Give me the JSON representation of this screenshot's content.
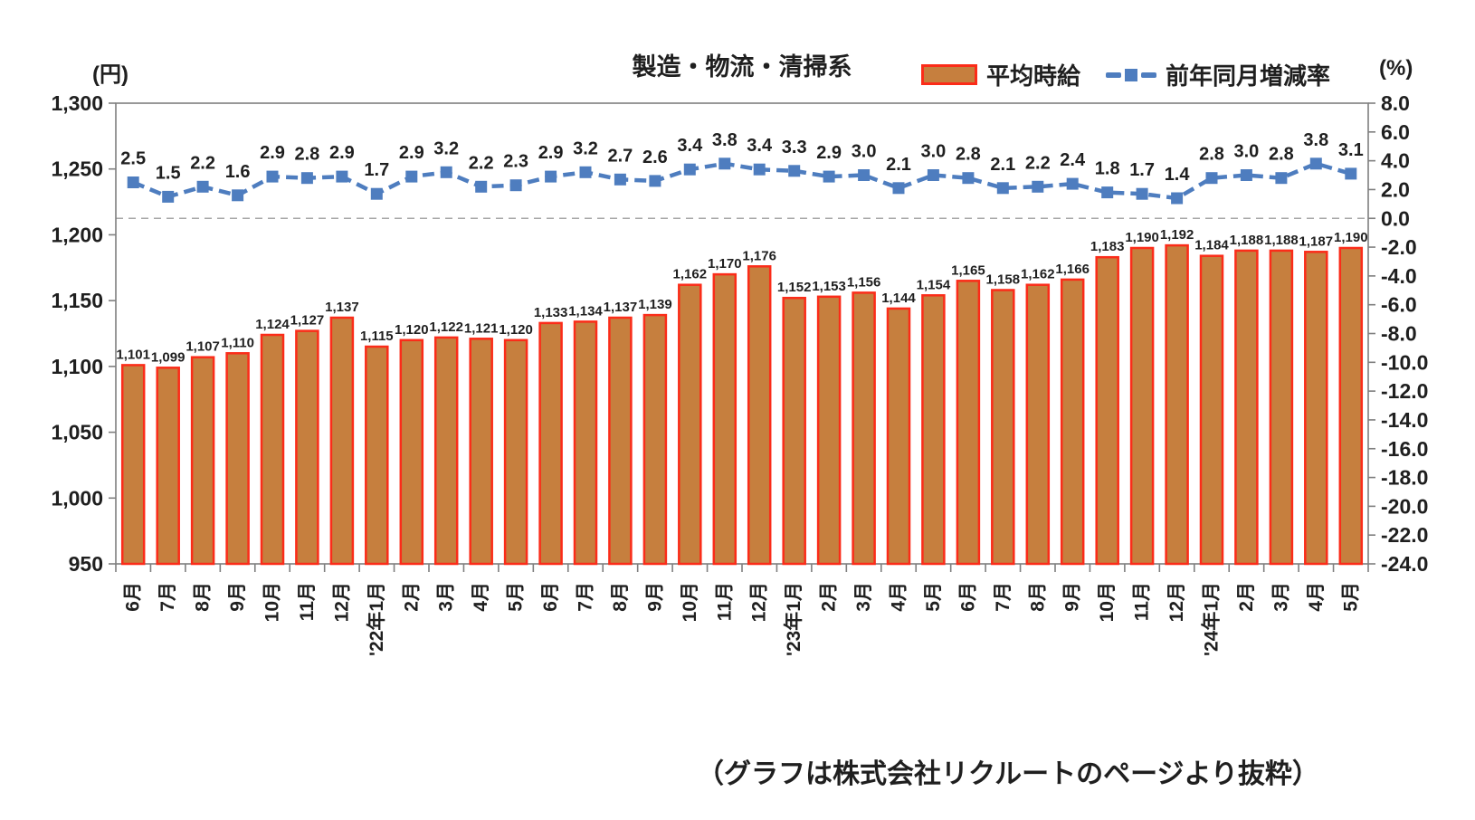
{
  "title": "製造・物流・清掃系",
  "caption": "（グラフは株式会社リクルートのページより抜粋）",
  "legend": {
    "bar_label": "平均時給",
    "line_label": "前年同月増減率"
  },
  "colors": {
    "bar_fill": "#c67f3e",
    "bar_border": "#fb2c19",
    "line": "#4e7dbf",
    "axis": "#7f7f7f",
    "grid_dash": "#a6a6a6",
    "text": "#1f1f1f"
  },
  "chart_data": {
    "type": "bar",
    "title": "製造・物流・清掃系",
    "legend_position": "top-right",
    "grid": "single dashed horizontal line at right-axis 0.0",
    "categories": [
      "6月",
      "7月",
      "8月",
      "9月",
      "10月",
      "11月",
      "12月",
      "'22年1月",
      "2月",
      "3月",
      "4月",
      "5月",
      "6月",
      "7月",
      "8月",
      "9月",
      "10月",
      "11月",
      "12月",
      "'23年1月",
      "2月",
      "3月",
      "4月",
      "5月",
      "6月",
      "7月",
      "8月",
      "9月",
      "10月",
      "11月",
      "12月",
      "'24年1月",
      "2月",
      "3月",
      "4月",
      "5月"
    ],
    "series": [
      {
        "name": "平均時給",
        "type": "bar",
        "axis": "left",
        "color": "#c67f3e",
        "values": [
          1101,
          1099,
          1107,
          1110,
          1124,
          1127,
          1137,
          1115,
          1120,
          1122,
          1121,
          1120,
          1133,
          1134,
          1137,
          1139,
          1162,
          1170,
          1176,
          1152,
          1153,
          1156,
          1144,
          1154,
          1165,
          1158,
          1162,
          1166,
          1183,
          1190,
          1192,
          1184,
          1188,
          1188,
          1187,
          1190
        ]
      },
      {
        "name": "前年同月増減率",
        "type": "line",
        "axis": "right",
        "color": "#4e7dbf",
        "values": [
          2.5,
          1.5,
          2.2,
          1.6,
          2.9,
          2.8,
          2.9,
          1.7,
          2.9,
          3.2,
          2.2,
          2.3,
          2.9,
          3.2,
          2.7,
          2.6,
          3.4,
          3.8,
          3.4,
          3.3,
          2.9,
          3.0,
          2.1,
          3.0,
          2.8,
          2.1,
          2.2,
          2.4,
          1.8,
          1.7,
          1.4,
          2.8,
          3.0,
          2.8,
          3.8,
          3.1
        ]
      }
    ],
    "left_axis": {
      "label": "(円)",
      "min": 950,
      "max": 1300,
      "step": 50
    },
    "right_axis": {
      "label": "(%)",
      "min": -24.0,
      "max": 8.0,
      "step": 2.0
    }
  }
}
